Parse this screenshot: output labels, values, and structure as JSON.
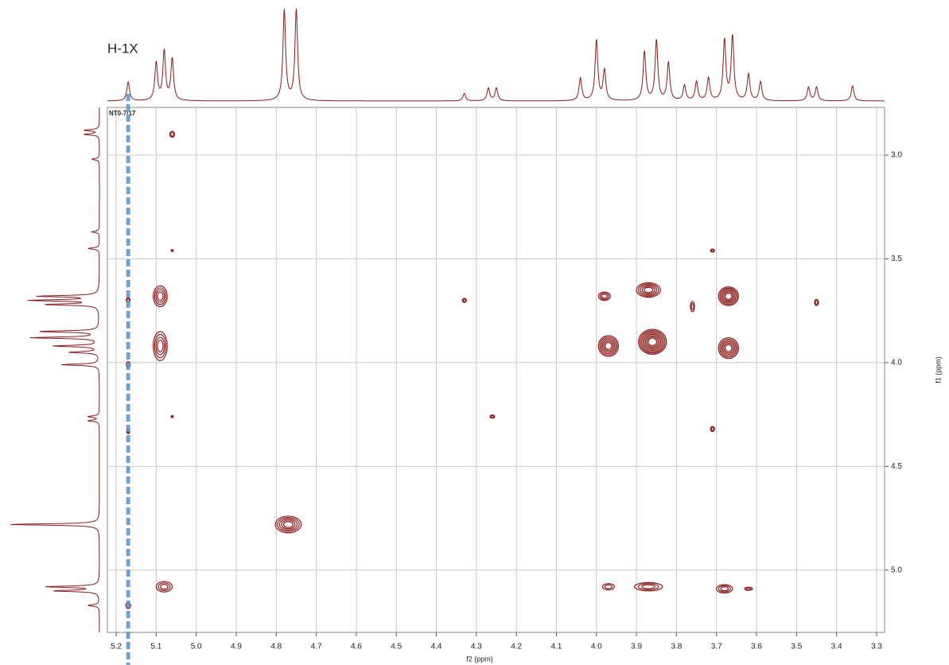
{
  "chart_data": {
    "type": "contour",
    "annotations": [
      "H-1X",
      "NT0-7/17"
    ],
    "xlabel": "f2 (ppm)",
    "ylabel": "f1 (ppm)",
    "xlim": [
      5.222,
      3.28
    ],
    "ylim": [
      2.77,
      5.3
    ],
    "xticks": [
      5.2,
      5.1,
      {
        "value": 5.0,
        "label": "5.0"
      },
      4.9,
      4.8,
      4.7,
      4.6,
      4.5,
      4.4,
      4.3,
      4.2,
      4.1,
      {
        "value": 4.0,
        "label": "4.0"
      },
      3.9,
      3.8,
      3.7,
      3.6,
      3.5,
      3.4,
      3.3
    ],
    "yticks": [
      {
        "value": 3.0,
        "label": "3.0"
      },
      3.5,
      {
        "value": 4.0,
        "label": "4.0"
      },
      4.5,
      {
        "value": 5.0,
        "label": "5.0"
      }
    ],
    "grid": true,
    "color": "#8b1a1a",
    "highlight_x": 5.17,
    "highlight_color": "#5b9bd5",
    "peaks": {
      "x": [
        5.06,
        5.06,
        5.09,
        5.09,
        5.06,
        5.17,
        5.17,
        5.17,
        5.17,
        4.77,
        5.08,
        4.33,
        4.26,
        3.98,
        3.87,
        3.97,
        3.86,
        3.76,
        3.67,
        3.67,
        3.71,
        3.71,
        3.45,
        3.97,
        3.87,
        3.68,
        3.62
      ],
      "y": [
        2.9,
        3.46,
        3.68,
        3.92,
        4.26,
        3.7,
        4.01,
        4.33,
        5.17,
        4.78,
        5.08,
        3.7,
        4.26,
        3.68,
        3.65,
        3.92,
        3.9,
        3.73,
        3.68,
        3.93,
        3.46,
        4.32,
        3.71,
        5.08,
        5.08,
        5.09,
        5.09
      ],
      "wx": [
        0.012,
        0.005,
        0.035,
        0.035,
        0.005,
        0.01,
        0.01,
        0.008,
        0.012,
        0.065,
        0.04,
        0.01,
        0.012,
        0.03,
        0.06,
        0.05,
        0.07,
        0.01,
        0.05,
        0.05,
        0.01,
        0.01,
        0.01,
        0.03,
        0.07,
        0.04,
        0.02
      ],
      "wy": [
        0.03,
        0.01,
        0.1,
        0.14,
        0.01,
        0.025,
        0.03,
        0.025,
        0.03,
        0.08,
        0.05,
        0.02,
        0.015,
        0.04,
        0.07,
        0.1,
        0.12,
        0.05,
        0.09,
        0.1,
        0.015,
        0.025,
        0.03,
        0.03,
        0.04,
        0.04,
        0.015
      ]
    },
    "top_projection": {
      "x": [
        5.17,
        5.1,
        5.08,
        5.06,
        4.78,
        4.75,
        4.33,
        4.27,
        4.25,
        4.04,
        4.0,
        3.98,
        3.88,
        3.85,
        3.82,
        3.78,
        3.75,
        3.72,
        3.68,
        3.66,
        3.62,
        3.59,
        3.47,
        3.45,
        3.36
      ],
      "height": [
        0.25,
        0.5,
        0.65,
        0.55,
        1.2,
        1.2,
        0.1,
        0.17,
        0.17,
        0.3,
        0.8,
        0.4,
        0.65,
        0.8,
        0.5,
        0.2,
        0.25,
        0.3,
        0.8,
        0.85,
        0.35,
        0.25,
        0.18,
        0.18,
        0.2
      ]
    },
    "left_projection": {
      "y": [
        2.88,
        2.9,
        3.02,
        3.37,
        3.45,
        3.68,
        3.7,
        3.72,
        3.85,
        3.88,
        3.92,
        3.95,
        4.01,
        4.26,
        4.28,
        4.78,
        5.08,
        5.1,
        5.17
      ],
      "height": [
        0.2,
        0.2,
        0.1,
        0.1,
        0.15,
        0.8,
        0.9,
        0.7,
        0.8,
        0.9,
        0.6,
        0.4,
        0.5,
        0.15,
        0.15,
        1.2,
        0.7,
        0.6,
        0.15
      ]
    }
  }
}
